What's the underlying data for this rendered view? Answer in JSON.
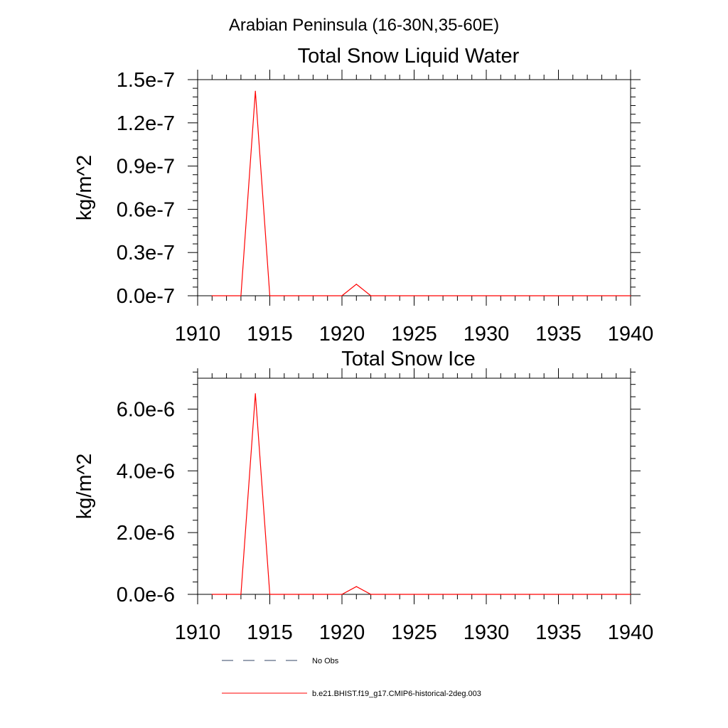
{
  "figure": {
    "suptitle": "Arabian Peninsula (16-30N,35-60E)"
  },
  "legend": {
    "placement": "bottom",
    "entries": [
      {
        "label": "No Obs",
        "color": "#334466",
        "style": "dashed"
      },
      {
        "label": "b.e21.BHIST.f19_g17.CMIP6-historical-2deg.003",
        "color": "#ff0000",
        "style": "solid"
      }
    ]
  },
  "chart_data": [
    {
      "type": "line",
      "title": "Total Snow Liquid Water",
      "xlabel": "",
      "ylabel": "kg/m^2",
      "xlim": [
        1910,
        1940
      ],
      "ylim": [
        0,
        1.5e-07
      ],
      "xticks": [
        1910,
        1915,
        1920,
        1925,
        1930,
        1935,
        1940
      ],
      "xtick_labels": [
        "1910",
        "1915",
        "1920",
        "1925",
        "1930",
        "1935",
        "1940"
      ],
      "yticks": [
        0,
        3e-08,
        6e-08,
        9e-08,
        1.2e-07,
        1.5e-07
      ],
      "ytick_labels": [
        "0.0e-7",
        "0.3e-7",
        "0.6e-7",
        "0.9e-7",
        "1.2e-7",
        "1.5e-7"
      ],
      "grid": false,
      "x": [
        1911,
        1912,
        1913,
        1914,
        1915,
        1916,
        1917,
        1918,
        1919,
        1920,
        1921,
        1922,
        1923,
        1924,
        1925,
        1926,
        1927,
        1928,
        1929,
        1930,
        1931,
        1932,
        1933,
        1934,
        1935,
        1936,
        1937,
        1938,
        1939,
        1940
      ],
      "series": [
        {
          "name": "b.e21.BHIST.f19_g17.CMIP6-historical-2deg.003",
          "color": "#ff0000",
          "values": [
            0,
            0,
            0,
            1.42e-07,
            0,
            0,
            0,
            0,
            0,
            0,
            8e-09,
            0,
            0,
            0,
            0,
            0,
            0,
            0,
            0,
            0,
            0,
            0,
            0,
            0,
            0,
            0,
            0,
            0,
            0,
            0
          ]
        }
      ]
    },
    {
      "type": "line",
      "title": "Total Snow Ice",
      "xlabel": "",
      "ylabel": "kg/m^2",
      "xlim": [
        1910,
        1940
      ],
      "ylim": [
        0,
        7e-06
      ],
      "xticks": [
        1910,
        1915,
        1920,
        1925,
        1930,
        1935,
        1940
      ],
      "xtick_labels": [
        "1910",
        "1915",
        "1920",
        "1925",
        "1930",
        "1935",
        "1940"
      ],
      "yticks": [
        0,
        2e-06,
        4e-06,
        6e-06
      ],
      "ytick_labels": [
        "0.0e-6",
        "2.0e-6",
        "4.0e-6",
        "6.0e-6"
      ],
      "grid": false,
      "x": [
        1911,
        1912,
        1913,
        1914,
        1915,
        1916,
        1917,
        1918,
        1919,
        1920,
        1921,
        1922,
        1923,
        1924,
        1925,
        1926,
        1927,
        1928,
        1929,
        1930,
        1931,
        1932,
        1933,
        1934,
        1935,
        1936,
        1937,
        1938,
        1939,
        1940
      ],
      "series": [
        {
          "name": "b.e21.BHIST.f19_g17.CMIP6-historical-2deg.003",
          "color": "#ff0000",
          "values": [
            0,
            0,
            0,
            6.5e-06,
            0,
            0,
            0,
            0,
            0,
            0,
            2.5e-07,
            0,
            0,
            0,
            0,
            0,
            0,
            0,
            0,
            0,
            0,
            0,
            0,
            0,
            0,
            0,
            0,
            0,
            0,
            0
          ]
        }
      ]
    }
  ]
}
